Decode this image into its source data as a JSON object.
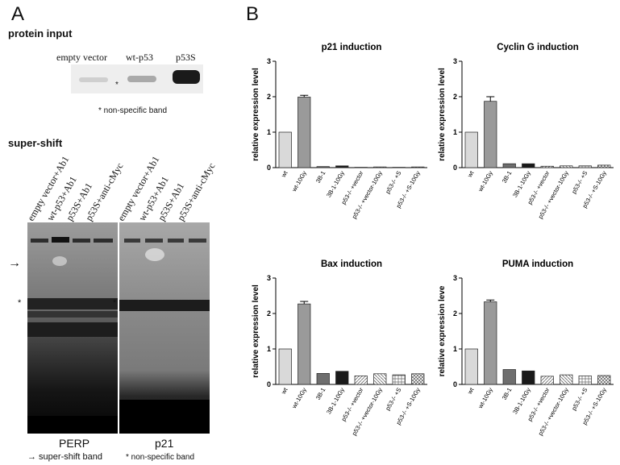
{
  "panel_a": {
    "letter": "A",
    "protein_input": {
      "heading": "protein input",
      "lanes": [
        "empty vector",
        "wt-p53",
        "p53S"
      ],
      "asterisk": "*",
      "footnote": "* non-specific band"
    },
    "super_shift": {
      "heading": "super-shift",
      "lanes_left": [
        "empty vector+Ab1",
        "wt-p53+Ab1",
        "p53S+Ab1",
        "p53S+anti-cMyc"
      ],
      "lanes_right": [
        "empty vector+Ab1",
        "wt-p53+Ab1",
        "p53S+Ab1",
        "p53S+anti-cMyc"
      ],
      "arrow": "→",
      "asterisk": "*",
      "gel_left_label": "PERP",
      "gel_right_label": "p21",
      "legend_arrow": "→ super-shift band",
      "legend_star": "* non-specific band"
    }
  },
  "panel_b": {
    "letter": "B"
  },
  "chart_data": [
    {
      "type": "bar",
      "title": "p21 induction",
      "ylabel": "relative expression level",
      "ylim": [
        0,
        3
      ],
      "yticks": [
        "0",
        "1",
        "2",
        "3"
      ],
      "categories": [
        "wt",
        "wt-10Gy",
        "3B-1",
        "3B-1-10Gy",
        "p53-/- +vector",
        "p53-/- +vector-10Gy",
        "p53-/- +S",
        "p53-/- +S-10Gy"
      ],
      "values": [
        1.0,
        1.99,
        0.03,
        0.05,
        0.01,
        0.02,
        0.01,
        0.02
      ],
      "errors": [
        0,
        0.05,
        0,
        0,
        0,
        0,
        0,
        0
      ]
    },
    {
      "type": "bar",
      "title": "Cyclin G induction",
      "ylabel": "relative expression level",
      "ylim": [
        0,
        3
      ],
      "yticks": [
        "0",
        "1",
        "2",
        "3"
      ],
      "categories": [
        "wt",
        "wt-10Gy",
        "3B-1",
        "3B-1-10Gy",
        "p53-/- +vector",
        "p53-/- +vector-10Gy",
        "p53-/- +S",
        "p53-/- +S-10Gy"
      ],
      "values": [
        1.0,
        1.87,
        0.11,
        0.11,
        0.04,
        0.05,
        0.05,
        0.07
      ],
      "errors": [
        0,
        0.13,
        0,
        0,
        0,
        0,
        0,
        0
      ]
    },
    {
      "type": "bar",
      "title": "Bax induction",
      "ylabel": "relative expression level",
      "ylim": [
        0,
        3
      ],
      "yticks": [
        "0",
        "1",
        "2",
        "3"
      ],
      "categories": [
        "wt",
        "wt-10Gy",
        "3B-1",
        "3B-1-10Gy",
        "p53-/- +vector",
        "p53-/- +vector-10Gy",
        "p53-/- +S",
        "p53-/- +S-10Gy"
      ],
      "values": [
        1.0,
        2.27,
        0.31,
        0.37,
        0.24,
        0.3,
        0.27,
        0.3
      ],
      "errors": [
        0,
        0.07,
        0,
        0,
        0,
        0,
        0,
        0
      ]
    },
    {
      "type": "bar",
      "title": "PUMA induction",
      "ylabel": "relative expression leve",
      "ylim": [
        0,
        3
      ],
      "yticks": [
        "0",
        "1",
        "2",
        "3"
      ],
      "categories": [
        "wt",
        "wt-10Gy",
        "3B-1",
        "3B-1-10Gy",
        "p53-/- +vector",
        "p53-/- +vector-10Gy",
        "p53-/- +S",
        "p53-/- +S-10Gy"
      ],
      "values": [
        1.0,
        2.33,
        0.42,
        0.38,
        0.23,
        0.27,
        0.24,
        0.25
      ],
      "errors": [
        0,
        0.05,
        0,
        0,
        0,
        0,
        0,
        0
      ]
    }
  ]
}
